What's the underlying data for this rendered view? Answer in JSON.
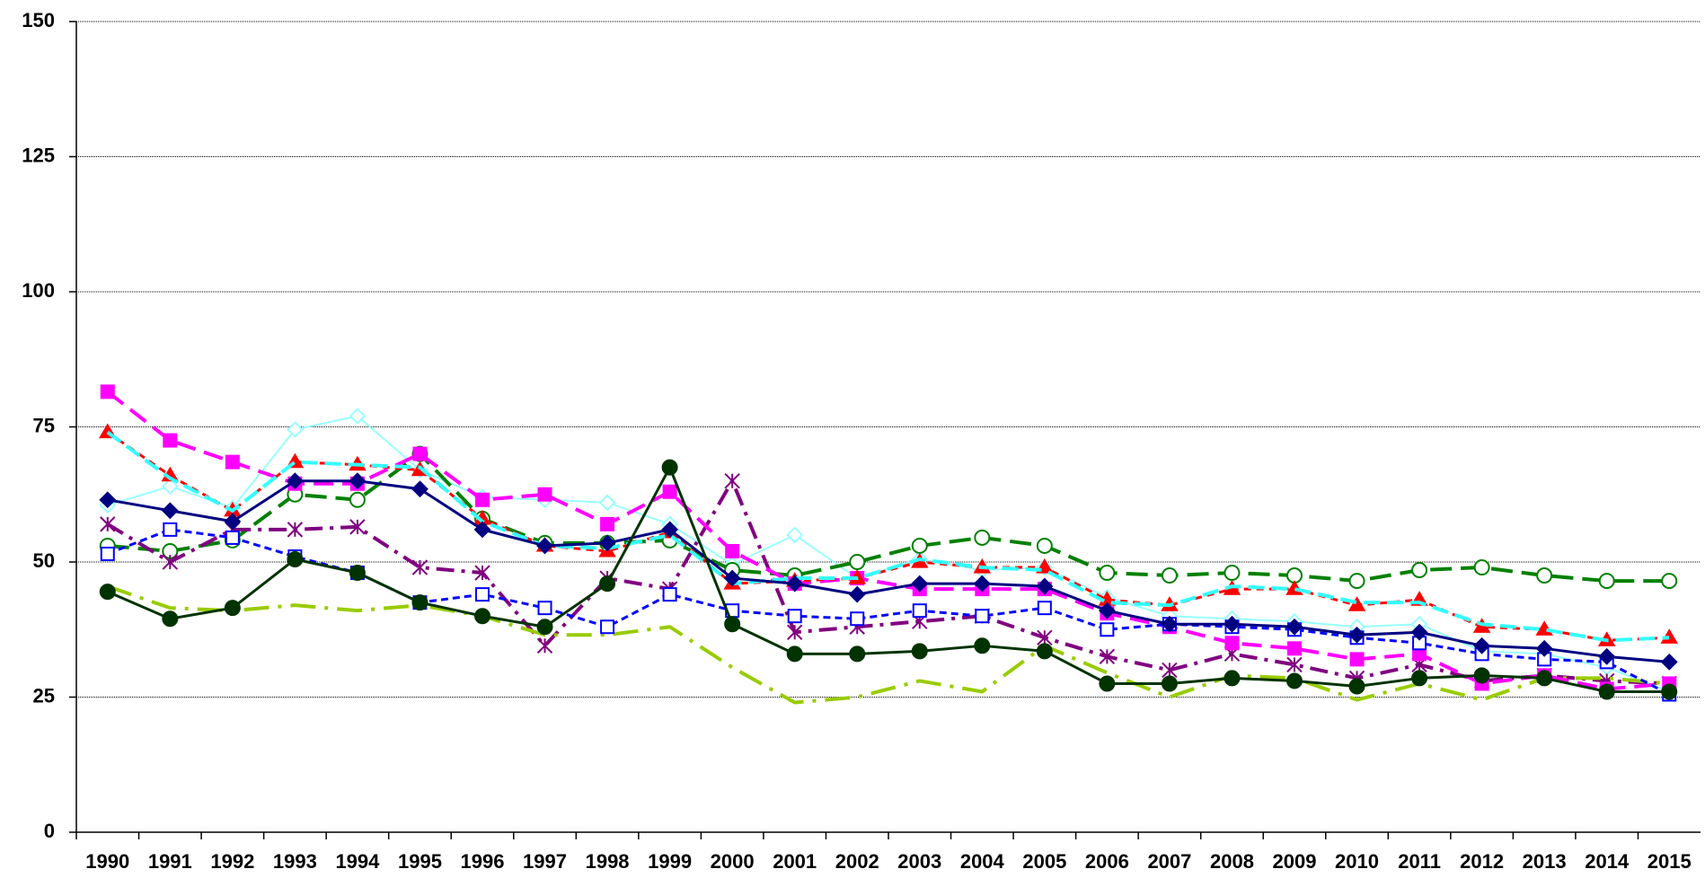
{
  "chart_data": {
    "type": "line",
    "categories": [
      "1990",
      "1991",
      "1992",
      "1993",
      "1994",
      "1995",
      "1996",
      "1997",
      "1998",
      "1999",
      "2000",
      "2001",
      "2002",
      "2003",
      "2004",
      "2005",
      "2006",
      "2007",
      "2008",
      "2009",
      "2010",
      "2011",
      "2012",
      "2013",
      "2014",
      "2015"
    ],
    "ylim": [
      0,
      150
    ],
    "yticks": [
      0,
      25,
      50,
      75,
      100,
      125,
      150
    ],
    "grid": true,
    "series": [
      {
        "color": "#99ffff",
        "dash": "none",
        "width": 2,
        "marker": "diamond-open",
        "values": [
          60.5,
          64,
          60,
          74.5,
          77,
          67,
          62,
          61.5,
          61,
          57,
          49.5,
          55,
          47,
          50.5,
          48.5,
          49,
          43.5,
          40,
          39.5,
          39,
          38,
          38.5,
          33.5,
          33,
          30.5,
          26
        ]
      },
      {
        "color": "#008000",
        "dash": "24 10",
        "width": 4,
        "marker": "circle-open",
        "values": [
          53,
          52,
          54,
          62.5,
          61.5,
          70,
          58,
          53.5,
          53.5,
          54,
          48.5,
          47.5,
          50,
          53,
          54.5,
          53,
          48,
          47.5,
          48,
          47.5,
          46.5,
          48.5,
          49,
          47.5,
          46.5,
          46.5
        ]
      },
      {
        "color": "#800080",
        "dash": "20 8 4 8",
        "width": 4,
        "marker": "asterisk",
        "values": [
          57,
          50,
          56,
          56,
          56.5,
          49,
          48,
          34.5,
          47,
          45,
          65,
          37,
          38,
          39,
          40,
          36,
          32.5,
          30,
          33,
          31,
          28.5,
          31,
          28,
          29,
          28,
          27.5
        ]
      },
      {
        "color": "#99cc00",
        "dash": "28 10 4 10",
        "width": 4,
        "marker": "none",
        "values": [
          45.5,
          41.5,
          41,
          42,
          41,
          42,
          40,
          36.5,
          36.5,
          38,
          30.5,
          24,
          25,
          28,
          26,
          34.5,
          29.5,
          25,
          29,
          28.5,
          24.5,
          27.5,
          24.5,
          28.5,
          28.5,
          27.5
        ]
      },
      {
        "color": "#ff00ff",
        "dash": "22 10",
        "width": 4,
        "marker": "square",
        "values": [
          81.5,
          72.5,
          68.5,
          64.5,
          64.5,
          70,
          61.5,
          62.5,
          57,
          63,
          52,
          46,
          47,
          45,
          45,
          45,
          40.5,
          38,
          35,
          34,
          32,
          33,
          27.5,
          29,
          26.5,
          27.5
        ]
      },
      {
        "color": "#ff0000",
        "dash": "8 6",
        "width": 3,
        "marker": "triangle",
        "values": [
          74,
          66,
          59.5,
          68.5,
          68,
          67,
          58,
          53,
          52,
          55.5,
          46,
          46.5,
          47,
          50,
          49,
          49,
          43,
          42,
          45,
          45,
          42,
          43,
          38,
          37.5,
          35.5,
          36
        ]
      },
      {
        "color": "#33ffff",
        "dash": "18 8",
        "width": 4,
        "marker": "none",
        "values": [
          74,
          65.5,
          59.5,
          68.5,
          68,
          67.5,
          57.5,
          53,
          52.5,
          55,
          46,
          47,
          47,
          50.5,
          49,
          48.5,
          42.5,
          42,
          45.5,
          45,
          42.5,
          42.5,
          38.5,
          37.5,
          35.5,
          36
        ]
      },
      {
        "color": "#0000ff",
        "dash": "8 5",
        "width": 3,
        "marker": "square-open",
        "values": [
          51.5,
          56,
          54.5,
          51,
          48,
          42.5,
          44,
          41.5,
          38,
          44,
          41,
          40,
          39.5,
          41,
          40,
          41.5,
          37.5,
          38.5,
          38,
          37.5,
          36,
          35,
          33,
          32,
          31.5,
          25.5
        ]
      },
      {
        "color": "#000080",
        "dash": "none",
        "width": 3,
        "marker": "diamond",
        "values": [
          61.5,
          59.5,
          57.5,
          65,
          65,
          63.5,
          56,
          53,
          53.5,
          56,
          47,
          46,
          44,
          46,
          46,
          45.5,
          41,
          38.5,
          38.5,
          38,
          36.5,
          37,
          34.5,
          34,
          32.5,
          31.5
        ]
      },
      {
        "color": "#003300",
        "dash": "none",
        "width": 3,
        "marker": "circle",
        "values": [
          44.5,
          39.5,
          41.5,
          50.5,
          48,
          42.5,
          40,
          38,
          46,
          67.5,
          38.5,
          33,
          33,
          33.5,
          34.5,
          33.5,
          27.5,
          27.5,
          28.5,
          28,
          27,
          28.5,
          29,
          28.5,
          26,
          26
        ]
      }
    ]
  }
}
